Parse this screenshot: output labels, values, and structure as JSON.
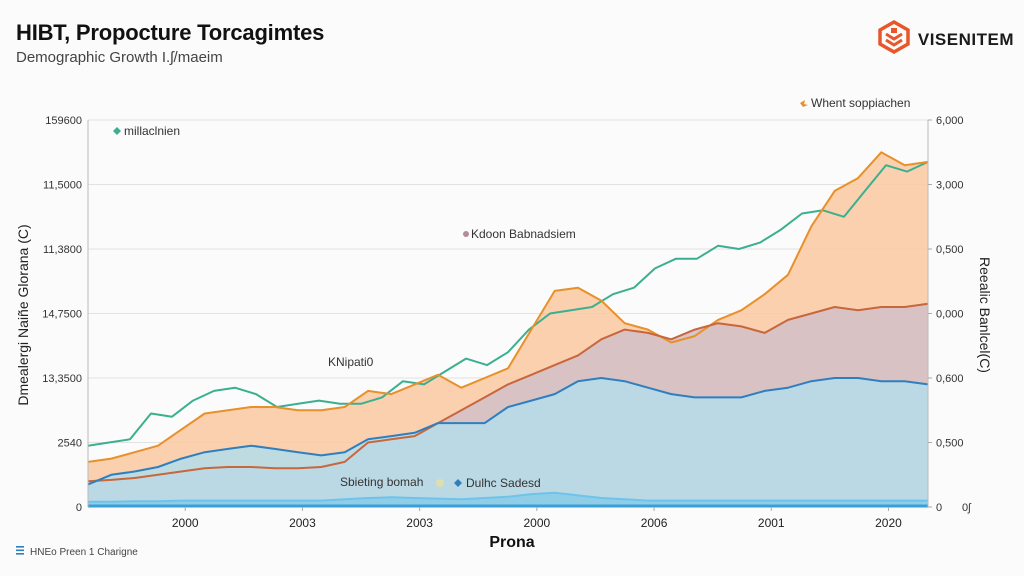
{
  "header": {
    "title": "HIBT, Propocture Torcagimtes",
    "subtitle": "Demographic Growth I.ʃ/maeim"
  },
  "brand": {
    "name": "VISENITEM",
    "logo_icon": "hexagon-cube-logo-icon",
    "logo_color": "#e8562a"
  },
  "footnote": {
    "icon": "list-icon",
    "text": "HNEo Preen 1 Charigne"
  },
  "chart_data": {
    "type": "area",
    "title": "HIBT, Propocture Torcagimtes",
    "subtitle": "Demographic Growth I.ʃ/maeim",
    "xlabel": "Prona",
    "ylabel": "Dmealergi Naiñe Glorana (C)",
    "y2label": "Reealic Banlcel(C)",
    "x_tick_labels": [
      "2000",
      "2003",
      "2003",
      "2000",
      "2006",
      "2001",
      "2020"
    ],
    "x_index_range": [
      0,
      40
    ],
    "x_tick_positions": [
      6,
      12,
      18,
      24,
      30,
      36,
      42
    ],
    "y_tick_labels": [
      "0",
      "2540",
      "13,3500",
      "14,7500",
      "11,3800",
      "11,5000",
      "159600"
    ],
    "y_range": [
      0,
      6
    ],
    "y2_tick_labels": [
      "0",
      "0,500",
      "0,600",
      "0,000",
      "0,500",
      "3,000",
      "6,000"
    ],
    "y2_range": [
      0,
      6
    ],
    "grid": true,
    "colors": {
      "teal": "#3bb08f",
      "orange": "#e8902a",
      "orange_fill": "#f9cba6",
      "rust": "#c8663c",
      "mauve_fill": "#d5c0c6",
      "blue": "#2f7fbf",
      "blue_fill": "#b7dbe8",
      "base": "#6ec3ea"
    },
    "annotations": [
      {
        "text": "millaclnien",
        "marker": "teal-diamond",
        "color": "#3bb08f"
      },
      {
        "text": "Whent soppiachen",
        "marker": "orange-leaf",
        "color": "#e8902a"
      },
      {
        "text": "Kdoon Babnadsiem",
        "marker": "mauve-dot",
        "color": "#b58a9a"
      },
      {
        "text": "KNipati0",
        "marker": "none",
        "color": "#333333"
      },
      {
        "text": "Sbieting bomah",
        "marker": "none",
        "color": "#333333"
      },
      {
        "text": "Dulhc Sadesd",
        "marker": "blue-diamond",
        "color": "#2f7fbf"
      }
    ],
    "series": [
      {
        "name": "millaclnien",
        "type": "line",
        "color": "#3bb08f",
        "values": [
          0.95,
          1.0,
          1.05,
          1.45,
          1.4,
          1.65,
          1.8,
          1.85,
          1.75,
          1.55,
          1.6,
          1.65,
          1.6,
          1.6,
          1.7,
          1.95,
          1.9,
          2.1,
          2.3,
          2.2,
          2.4,
          2.75,
          3.0,
          3.05,
          3.1,
          3.3,
          3.4,
          3.7,
          3.85,
          3.85,
          4.05,
          4.0,
          4.1,
          4.3,
          4.55,
          4.6,
          4.5,
          4.9,
          5.3,
          5.2,
          5.35
        ]
      },
      {
        "name": "Whent soppiachen",
        "type": "area",
        "color": "#e8902a",
        "values": [
          0.7,
          0.75,
          0.85,
          0.95,
          1.2,
          1.45,
          1.5,
          1.55,
          1.55,
          1.5,
          1.5,
          1.55,
          1.8,
          1.75,
          1.9,
          2.05,
          1.85,
          2.0,
          2.15,
          2.75,
          3.35,
          3.4,
          3.2,
          2.85,
          2.75,
          2.55,
          2.65,
          2.9,
          3.05,
          3.3,
          3.6,
          4.35,
          4.9,
          5.1,
          5.5,
          5.3,
          5.35
        ]
      },
      {
        "name": "Kdoon Babnadsiem",
        "type": "area",
        "color": "#c8663c",
        "values": [
          0.4,
          0.42,
          0.45,
          0.5,
          0.55,
          0.6,
          0.62,
          0.62,
          0.6,
          0.6,
          0.62,
          0.7,
          1.0,
          1.05,
          1.1,
          1.3,
          1.5,
          1.7,
          1.9,
          2.05,
          2.2,
          2.35,
          2.6,
          2.75,
          2.7,
          2.6,
          2.75,
          2.85,
          2.8,
          2.7,
          2.9,
          3.0,
          3.1,
          3.05,
          3.1,
          3.1,
          3.15
        ]
      },
      {
        "name": "Dulhc Sadesd",
        "type": "area",
        "color": "#2f7fbf",
        "values": [
          0.35,
          0.5,
          0.55,
          0.62,
          0.75,
          0.85,
          0.9,
          0.95,
          0.9,
          0.85,
          0.8,
          0.85,
          1.05,
          1.1,
          1.15,
          1.3,
          1.3,
          1.3,
          1.55,
          1.65,
          1.75,
          1.95,
          2.0,
          1.95,
          1.85,
          1.75,
          1.7,
          1.7,
          1.7,
          1.8,
          1.85,
          1.95,
          2.0,
          2.0,
          1.95,
          1.95,
          1.9
        ]
      },
      {
        "name": "Sbieting bomah",
        "type": "area",
        "color": "#6ec3ea",
        "values": [
          0.08,
          0.08,
          0.09,
          0.09,
          0.1,
          0.1,
          0.1,
          0.1,
          0.1,
          0.1,
          0.1,
          0.12,
          0.14,
          0.15,
          0.14,
          0.13,
          0.12,
          0.14,
          0.16,
          0.2,
          0.22,
          0.18,
          0.14,
          0.12,
          0.1,
          0.1,
          0.1,
          0.1,
          0.1,
          0.1,
          0.1,
          0.1,
          0.1,
          0.1,
          0.1,
          0.1,
          0.1
        ]
      }
    ]
  }
}
